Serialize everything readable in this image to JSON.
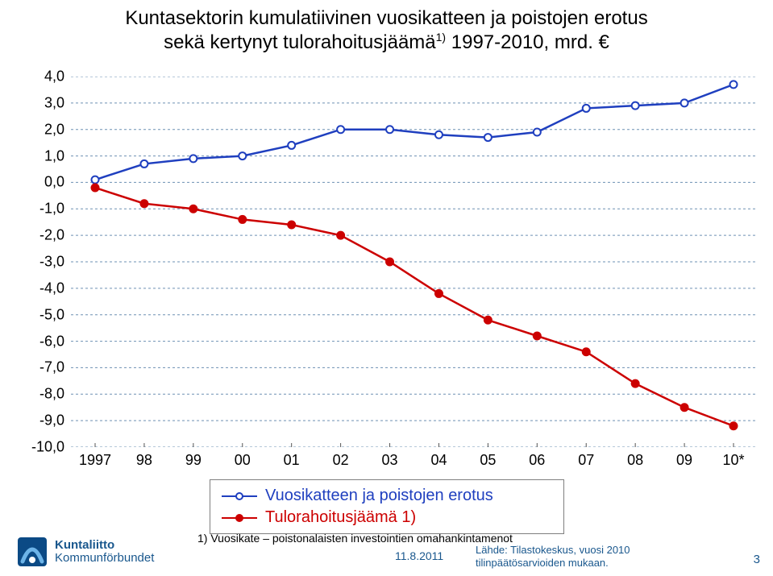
{
  "title_line1": "Kuntasektorin kumulatiivinen vuosikatteen ja poistojen erotus",
  "title_line2a": "sekä kertynyt tulorahoitusjäämä",
  "title_sup": "1)",
  "title_line2b": " 1997-2010, mrd. €",
  "chart": {
    "type": "line",
    "background_color": "#ffffff",
    "grid_color": "#6d90b3",
    "grid_dash": "3 3",
    "x_categories": [
      "1997",
      "98",
      "99",
      "00",
      "01",
      "02",
      "03",
      "04",
      "05",
      "06",
      "07",
      "08",
      "09",
      "10*"
    ],
    "y_min": -10.0,
    "y_max": 4.0,
    "y_step": 1.0,
    "y_ticks": [
      "4,0",
      "3,0",
      "2,0",
      "1,0",
      "0,0",
      "-1,0",
      "-2,0",
      "-3,0",
      "-4,0",
      "-5,0",
      "-6,0",
      "-7,0",
      "-8,0",
      "-9,0",
      "-10,0"
    ],
    "axis_font_size": 18,
    "series": [
      {
        "name": "Vuosikatteen ja poistojen erotus",
        "color": "#1f3fbf",
        "line_width": 2.5,
        "marker": "circle",
        "marker_size": 9,
        "marker_fill": "#ffffff",
        "marker_stroke": "#1f3fbf",
        "values": [
          0.1,
          0.7,
          0.9,
          1.0,
          1.4,
          2.0,
          2.0,
          1.8,
          1.7,
          1.9,
          2.8,
          2.9,
          3.0,
          3.7
        ]
      },
      {
        "name": "Tulorahoitusjäämä 1)",
        "color": "#cc0000",
        "line_width": 2.5,
        "marker": "circle",
        "marker_size": 9,
        "marker_fill": "#cc0000",
        "marker_stroke": "#cc0000",
        "values": [
          -0.2,
          -0.8,
          -1.0,
          -1.4,
          -1.6,
          -2.0,
          -3.0,
          -4.2,
          -5.2,
          -5.8,
          -6.4,
          -7.6,
          -8.5,
          -9.2
        ]
      }
    ],
    "legend": {
      "entries": [
        {
          "label": "Vuosikatteen ja poistojen erotus",
          "color": "#1f3fbf",
          "fill": "#ffffff"
        },
        {
          "label": "Tulorahoitusjäämä 1)",
          "color": "#cc0000",
          "fill": "#cc0000"
        }
      ],
      "font_size": 20,
      "border_color": "#7f7f7f"
    }
  },
  "footnote": "1) Vuosikate – poistonalaisten investointien omahankintamenot",
  "date": "11.8.2011",
  "source_line1": "Lähde: Tilastokeskus, vuosi 2010",
  "source_line2": "tilinpäätösarvioiden mukaan.",
  "page_number": "3",
  "logo_line1": "Kuntaliitto",
  "logo_line2": "Kommunförbundet",
  "logo_colors": {
    "square": "#0b4a85",
    "arc": "#6aa2d6"
  }
}
